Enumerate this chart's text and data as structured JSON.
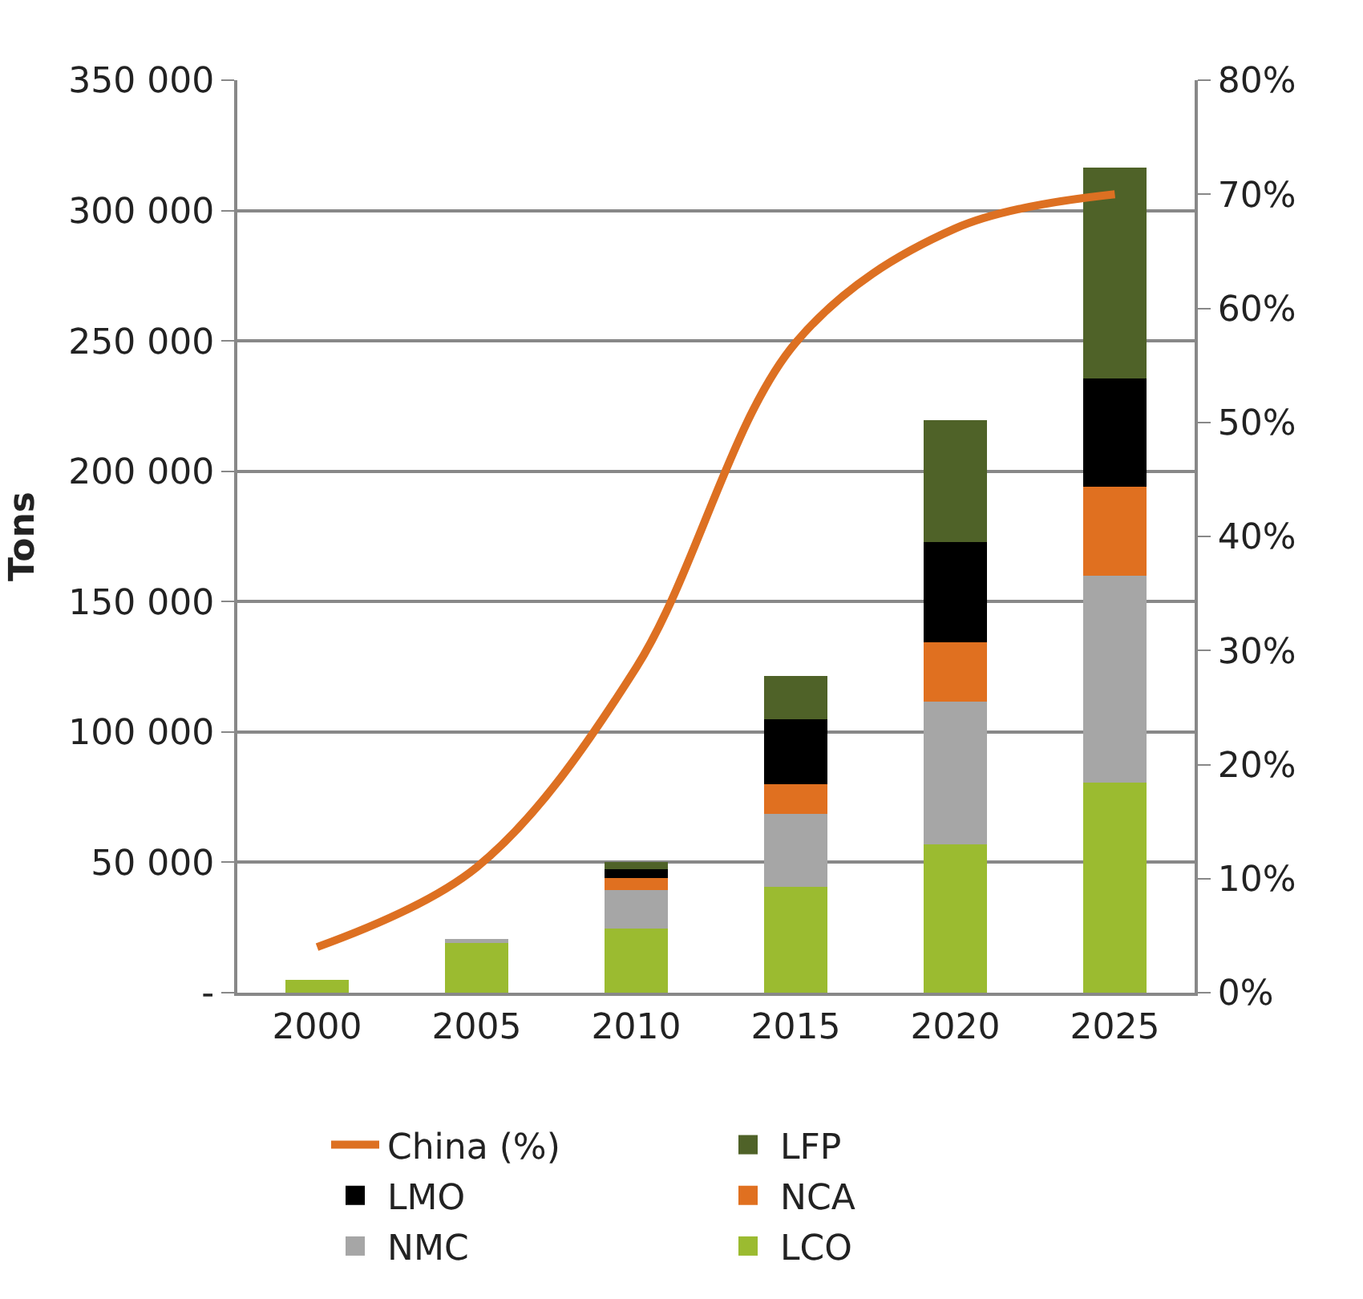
{
  "chart_data": {
    "type": "bar",
    "stacked": true,
    "ylabel": "Tons",
    "categories": [
      "2000",
      "2005",
      "2010",
      "2015",
      "2020",
      "2025"
    ],
    "series": [
      {
        "name": "LCO",
        "color": "#9bbb30",
        "values": [
          5000,
          19000,
          24500,
          40500,
          57000,
          80500
        ]
      },
      {
        "name": "NMC",
        "color": "#a6a6a6",
        "values": [
          null,
          1500,
          15000,
          28000,
          54500,
          79500
        ]
      },
      {
        "name": "NCA",
        "color": "#e07020",
        "values": [
          null,
          null,
          4500,
          11500,
          23000,
          34000
        ]
      },
      {
        "name": "LMO",
        "color": "#000000",
        "values": [
          null,
          null,
          3500,
          25000,
          38500,
          41500
        ]
      },
      {
        "name": "LFP",
        "color": "#4f6228",
        "values": [
          null,
          null,
          2500,
          16500,
          46500,
          81000
        ]
      },
      {
        "name": "China (%)",
        "type": "line",
        "axis": "y2",
        "color": "#dd7022",
        "values": [
          4,
          11,
          28.5,
          57,
          67,
          70
        ]
      }
    ],
    "ylim": [
      0,
      350000
    ],
    "yticks": [
      {
        "value": 0,
        "label": "-"
      },
      {
        "value": 50000,
        "label": "50 000"
      },
      {
        "value": 100000,
        "label": "100 000"
      },
      {
        "value": 150000,
        "label": "150 000"
      },
      {
        "value": 200000,
        "label": "200 000"
      },
      {
        "value": 250000,
        "label": "250 000"
      },
      {
        "value": 300000,
        "label": "300 000"
      },
      {
        "value": 350000,
        "label": "350 000"
      }
    ],
    "y2lim": [
      0,
      80
    ],
    "y2ticks": [
      {
        "value": 0,
        "label": "0%"
      },
      {
        "value": 10,
        "label": "10%"
      },
      {
        "value": 20,
        "label": "20%"
      },
      {
        "value": 30,
        "label": "30%"
      },
      {
        "value": 40,
        "label": "40%"
      },
      {
        "value": 50,
        "label": "50%"
      },
      {
        "value": 60,
        "label": "60%"
      },
      {
        "value": 70,
        "label": "70%"
      },
      {
        "value": 80,
        "label": "80%"
      }
    ],
    "grid": "y",
    "legend": "bottom",
    "marker": "none",
    "line_style": "solid"
  }
}
